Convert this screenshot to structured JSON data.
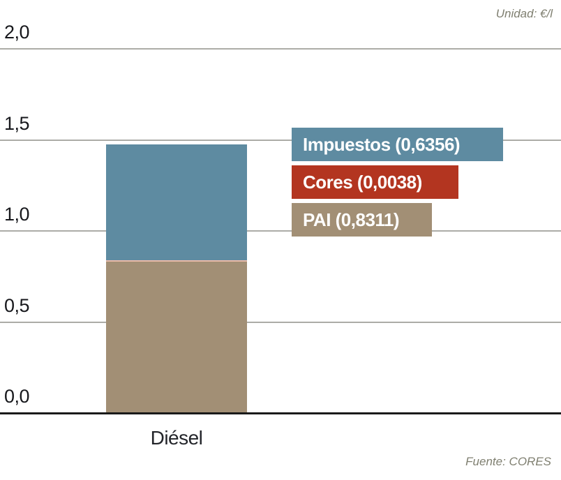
{
  "header": {
    "unit_label": "Unidad: €/l"
  },
  "footer": {
    "source_label": "Fuente: CORES"
  },
  "colors": {
    "impuestos_blue": "#5e8ba1",
    "cores_red": "#b33520",
    "cores_thin_line_pink": "#e9baa9",
    "pai_tan": "#a28f75",
    "gridline_gray": "#acaca7",
    "baseline_black": "#1a1a1a",
    "caption_olive_gray": "#7f7f70"
  },
  "chart_data": {
    "type": "bar",
    "stacked": true,
    "title": "",
    "xlabel": "",
    "ylabel": "€/l",
    "ylim": [
      0,
      2
    ],
    "grid": true,
    "legend_position": "right",
    "categories": [
      "Diésel"
    ],
    "series": [
      {
        "name": "PAI",
        "values": [
          0.8311
        ],
        "color": "#a28f75",
        "label": "PAI (0,8311)"
      },
      {
        "name": "Cores",
        "values": [
          0.0038
        ],
        "color": "#b33520",
        "bar_color": "#e9baa9",
        "label": "Cores (0,0038)"
      },
      {
        "name": "Impuestos",
        "values": [
          0.6356
        ],
        "color": "#5e8ba1",
        "label": "Impuestos (0,6356)"
      }
    ],
    "yticks": [
      {
        "label": "2,0",
        "value": 2.0
      },
      {
        "label": "1,5",
        "value": 1.5
      },
      {
        "label": "1,0",
        "value": 1.0
      },
      {
        "label": "0,5",
        "value": 0.5
      },
      {
        "label": "0,0",
        "value": 0.0
      }
    ]
  }
}
